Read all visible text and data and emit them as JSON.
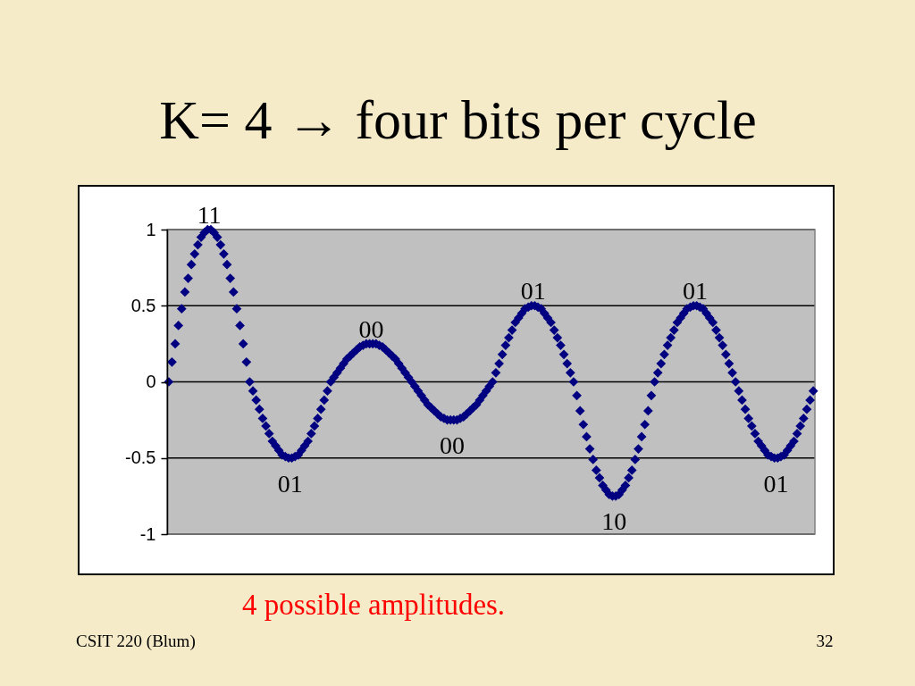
{
  "chart_data": {
    "type": "scatter",
    "title": "K= 4 → four bits per cycle",
    "categories": [
      null,
      null,
      null,
      null,
      null,
      null,
      null,
      null,
      null,
      null,
      null,
      null,
      null,
      null,
      null,
      null,
      null,
      null,
      null,
      null,
      null,
      null,
      null,
      null,
      null,
      null,
      null,
      null,
      null,
      null,
      null,
      null,
      null,
      null,
      null,
      null,
      null,
      null,
      null,
      null,
      null,
      null,
      null,
      null,
      null,
      null,
      null,
      null,
      null,
      null,
      null,
      null,
      null,
      null,
      null,
      null,
      null,
      null,
      null,
      null,
      null,
      null,
      null,
      null,
      null,
      null,
      null,
      null,
      null,
      null,
      null,
      null,
      null,
      null,
      null,
      null,
      null,
      null,
      null,
      null,
      null,
      null,
      null,
      null,
      null,
      null,
      null,
      null,
      null,
      null,
      null,
      null,
      null,
      null,
      null,
      null,
      null,
      null,
      null,
      null,
      null,
      null,
      null,
      null,
      null,
      null,
      null,
      null,
      null,
      null,
      null,
      null,
      null,
      null,
      null,
      null,
      null,
      null,
      null,
      null,
      null,
      null,
      null,
      null,
      null,
      null,
      null,
      null,
      null,
      null,
      null,
      null,
      null,
      null,
      null,
      null,
      null,
      null,
      null,
      null,
      null,
      null,
      null,
      null,
      null,
      null,
      null,
      null,
      null,
      null,
      null,
      null,
      null,
      null,
      null,
      null,
      null,
      null,
      null,
      null,
      null,
      null,
      null,
      null,
      null,
      null,
      null,
      null,
      null,
      null,
      null,
      null,
      null,
      null,
      null,
      null,
      null,
      null,
      null,
      null,
      null,
      null,
      null,
      null,
      null,
      null,
      null,
      null,
      null,
      null,
      null,
      null,
      null,
      null,
      null,
      null,
      null,
      null,
      null,
      null
    ],
    "values": [
      0,
      0.13,
      0.25,
      0.37,
      0.48,
      0.59,
      0.68,
      0.77,
      0.84,
      0.9,
      0.95,
      0.98,
      1,
      1,
      0.98,
      0.95,
      0.9,
      0.84,
      0.77,
      0.68,
      0.59,
      0.48,
      0.37,
      0.25,
      0.13,
      0,
      -0.06,
      -0.12,
      -0.18,
      -0.24,
      -0.29,
      -0.34,
      -0.39,
      -0.42,
      -0.45,
      -0.48,
      -0.49,
      -0.5,
      -0.5,
      -0.49,
      -0.48,
      -0.45,
      -0.42,
      -0.39,
      -0.34,
      -0.29,
      -0.24,
      -0.18,
      -0.12,
      -0.06,
      0,
      0.03,
      0.06,
      0.09,
      0.12,
      0.15,
      0.17,
      0.19,
      0.21,
      0.23,
      0.24,
      0.25,
      0.25,
      0.25,
      0.25,
      0.24,
      0.23,
      0.21,
      0.19,
      0.17,
      0.15,
      0.12,
      0.09,
      0.06,
      0.03,
      0,
      -0.03,
      -0.06,
      -0.09,
      -0.12,
      -0.15,
      -0.17,
      -0.19,
      -0.21,
      -0.23,
      -0.24,
      -0.25,
      -0.25,
      -0.25,
      -0.25,
      -0.24,
      -0.23,
      -0.21,
      -0.19,
      -0.17,
      -0.15,
      -0.12,
      -0.09,
      -0.06,
      -0.03,
      0,
      0.06,
      0.12,
      0.18,
      0.24,
      0.29,
      0.34,
      0.39,
      0.42,
      0.45,
      0.48,
      0.49,
      0.5,
      0.5,
      0.49,
      0.48,
      0.45,
      0.42,
      0.39,
      0.34,
      0.29,
      0.24,
      0.18,
      0.12,
      0.06,
      0,
      -0.09,
      -0.19,
      -0.28,
      -0.36,
      -0.44,
      -0.51,
      -0.58,
      -0.63,
      -0.68,
      -0.71,
      -0.74,
      -0.75,
      -0.75,
      -0.74,
      -0.71,
      -0.68,
      -0.63,
      -0.58,
      -0.51,
      -0.44,
      -0.36,
      -0.28,
      -0.19,
      -0.09,
      0,
      0.06,
      0.12,
      0.18,
      0.24,
      0.29,
      0.34,
      0.39,
      0.42,
      0.45,
      0.48,
      0.49,
      0.5,
      0.5,
      0.49,
      0.48,
      0.45,
      0.42,
      0.39,
      0.34,
      0.29,
      0.24,
      0.18,
      0.12,
      0.06,
      0,
      -0.06,
      -0.12,
      -0.18,
      -0.24,
      -0.29,
      -0.34,
      -0.39,
      -0.42,
      -0.45,
      -0.48,
      -0.49,
      -0.5,
      -0.5,
      -0.49,
      -0.48,
      -0.45,
      -0.42,
      -0.39,
      -0.34,
      -0.29,
      -0.24,
      -0.18,
      -0.12,
      -0.06
    ],
    "color": "#000080",
    "marker": "diamond",
    "ylim": [
      -1,
      1
    ],
    "yticks": [
      -1,
      -0.5,
      0,
      0.5,
      1
    ],
    "grid": "y",
    "tick_labels": "y",
    "annotations": [
      {
        "text": "11",
        "y": 1
      },
      {
        "text": "01",
        "y": -0.5
      },
      {
        "text": "00",
        "y": 0.25
      },
      {
        "text": "00",
        "y": -0.25
      },
      {
        "text": "01",
        "y": 0.5
      },
      {
        "text": "10",
        "y": -0.75
      },
      {
        "text": "01",
        "y": 0.5
      },
      {
        "text": "01",
        "y": -0.5
      },
      "4 possible amplitudes.",
      "CSIT 220 (Blum)",
      "32"
    ]
  }
}
